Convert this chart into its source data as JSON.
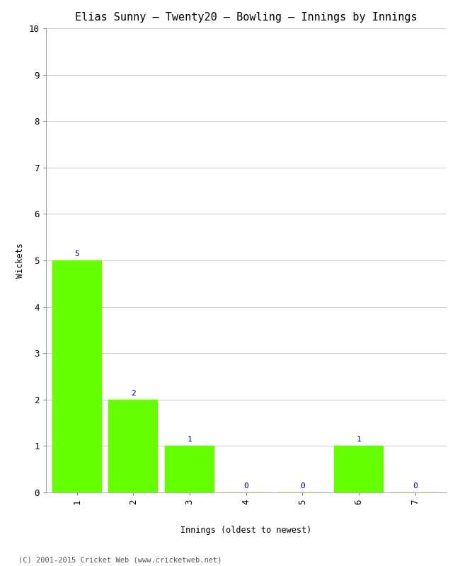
{
  "title": "Elias Sunny – Twenty20 – Bowling – Innings by Innings",
  "xlabel": "Innings (oldest to newest)",
  "ylabel": "Wickets",
  "categories": [
    1,
    2,
    3,
    4,
    5,
    6,
    7
  ],
  "values": [
    5,
    2,
    1,
    0,
    0,
    1,
    0
  ],
  "bar_color": "#66ff00",
  "bar_edge_color": "#66ff00",
  "label_color": "#000080",
  "ylim": [
    0,
    10
  ],
  "yticks": [
    0,
    1,
    2,
    3,
    4,
    5,
    6,
    7,
    8,
    9,
    10
  ],
  "xticks": [
    1,
    2,
    3,
    4,
    5,
    6,
    7
  ],
  "title_fontsize": 11,
  "axis_label_fontsize": 8.5,
  "tick_fontsize": 9,
  "label_fontsize": 8,
  "background_color": "#ffffff",
  "footer_text": "(C) 2001-2015 Cricket Web (www.cricketweb.net)",
  "footer_fontsize": 7.5,
  "grid_color": "#cccccc",
  "bar_width": 0.88
}
